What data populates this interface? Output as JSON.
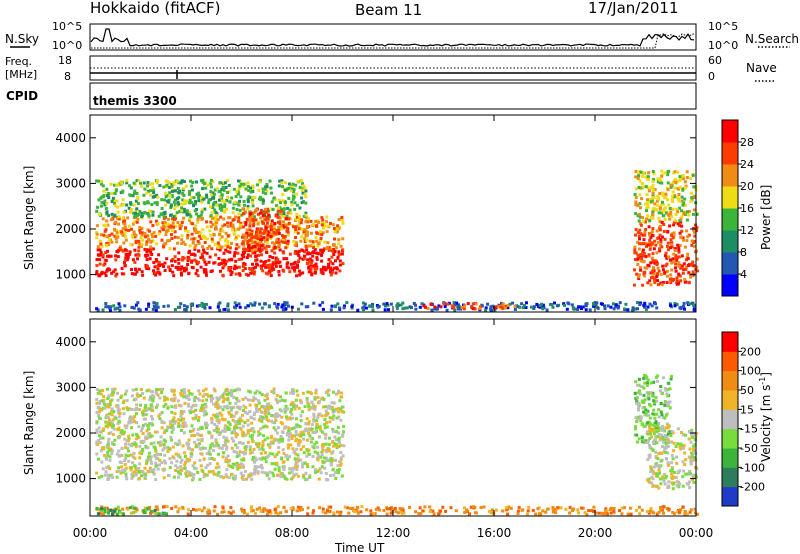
{
  "header": {
    "station": "Hokkaido (fitACF)",
    "beam": "Beam 11",
    "date": "17/Jan/2011"
  },
  "top_panels": {
    "nsky": {
      "label": "N.Sky",
      "ticks": [
        "10^5",
        "10^0"
      ]
    },
    "nsearch": {
      "label": "N.Search",
      "ticks": [
        "10^5",
        "10^0"
      ]
    },
    "freq": {
      "label_line1": "Freq.",
      "label_line2": "[MHz]",
      "ticks": [
        "18",
        "8"
      ]
    },
    "nave": {
      "label": "Nave",
      "ticks": [
        "60",
        "0"
      ]
    },
    "cpid": {
      "label": "CPID",
      "text": "themis 3300"
    }
  },
  "chart_data": [
    {
      "type": "heatmap",
      "panel": "power",
      "ylabel": "Slant Range [km]",
      "xlabel": "Time UT",
      "xticks": [
        "00:00",
        "04:00",
        "08:00",
        "12:00",
        "16:00",
        "20:00",
        "00:00"
      ],
      "yticks": [
        1000,
        2000,
        3000,
        4000
      ],
      "xlim_hours": [
        0,
        24
      ],
      "ylim_km": [
        180,
        4500
      ],
      "colorbar": {
        "label": "Power [dB]",
        "ticks": [
          "4",
          "8",
          "12",
          "16",
          "20",
          "24",
          "28"
        ],
        "colors": [
          "#0000ff",
          "#2257b4",
          "#1e8c64",
          "#3cb43c",
          "#f0dc14",
          "#f08c14",
          "#ff3c00",
          "#ff0000"
        ]
      },
      "regions": [
        {
          "t": [
            0.2,
            10.0
          ],
          "r": [
            1000,
            1600
          ],
          "level": 7
        },
        {
          "t": [
            0.2,
            10.0
          ],
          "r": [
            1600,
            2300
          ],
          "level": 5
        },
        {
          "t": [
            0.2,
            8.5
          ],
          "r": [
            2300,
            3100
          ],
          "level": 3
        },
        {
          "t": [
            6.0,
            7.8
          ],
          "r": [
            1500,
            2500
          ],
          "level": 6
        },
        {
          "t": [
            21.5,
            24.0
          ],
          "r": [
            800,
            2200
          ],
          "level": 6
        },
        {
          "t": [
            21.5,
            24.0
          ],
          "r": [
            2200,
            3300
          ],
          "level": 4
        },
        {
          "t": [
            0.2,
            24.0
          ],
          "r": [
            250,
            420
          ],
          "level": 1
        },
        {
          "t": [
            13.0,
            16.8
          ],
          "r": [
            280,
            400
          ],
          "level": 6
        }
      ]
    },
    {
      "type": "heatmap",
      "panel": "velocity",
      "ylabel": "Slant Range [km]",
      "xlabel": "Time UT",
      "xticks": [
        "00:00",
        "04:00",
        "08:00",
        "12:00",
        "16:00",
        "20:00",
        "00:00"
      ],
      "yticks": [
        1000,
        2000,
        3000,
        4000
      ],
      "xlim_hours": [
        0,
        24
      ],
      "ylim_km": [
        180,
        4500
      ],
      "colorbar": {
        "label": "Velocity [m s^-1]",
        "ticks": [
          "200",
          "100",
          "50",
          "15",
          "-15",
          "-50",
          "-100",
          "-200"
        ],
        "colors": [
          "#1e3cc8",
          "#2d7d5a",
          "#3cb43c",
          "#78dc3c",
          "#bebebe",
          "#f0b428",
          "#f08c14",
          "#ff5a00",
          "#ff0000"
        ]
      },
      "regions": [
        {
          "t": [
            0.2,
            10.0
          ],
          "r": [
            1000,
            3000
          ],
          "level": 4
        },
        {
          "t": [
            21.5,
            23.0
          ],
          "r": [
            1800,
            3300
          ],
          "level": 3
        },
        {
          "t": [
            22.0,
            24.0
          ],
          "r": [
            800,
            2200
          ],
          "level": 4
        },
        {
          "t": [
            0.2,
            24.0
          ],
          "r": [
            250,
            420
          ],
          "level": 6
        },
        {
          "t": [
            0.2,
            3.0
          ],
          "r": [
            250,
            420
          ],
          "level": 2
        }
      ]
    }
  ],
  "colors": {
    "frame": "#000000",
    "background": "#ffffff"
  }
}
